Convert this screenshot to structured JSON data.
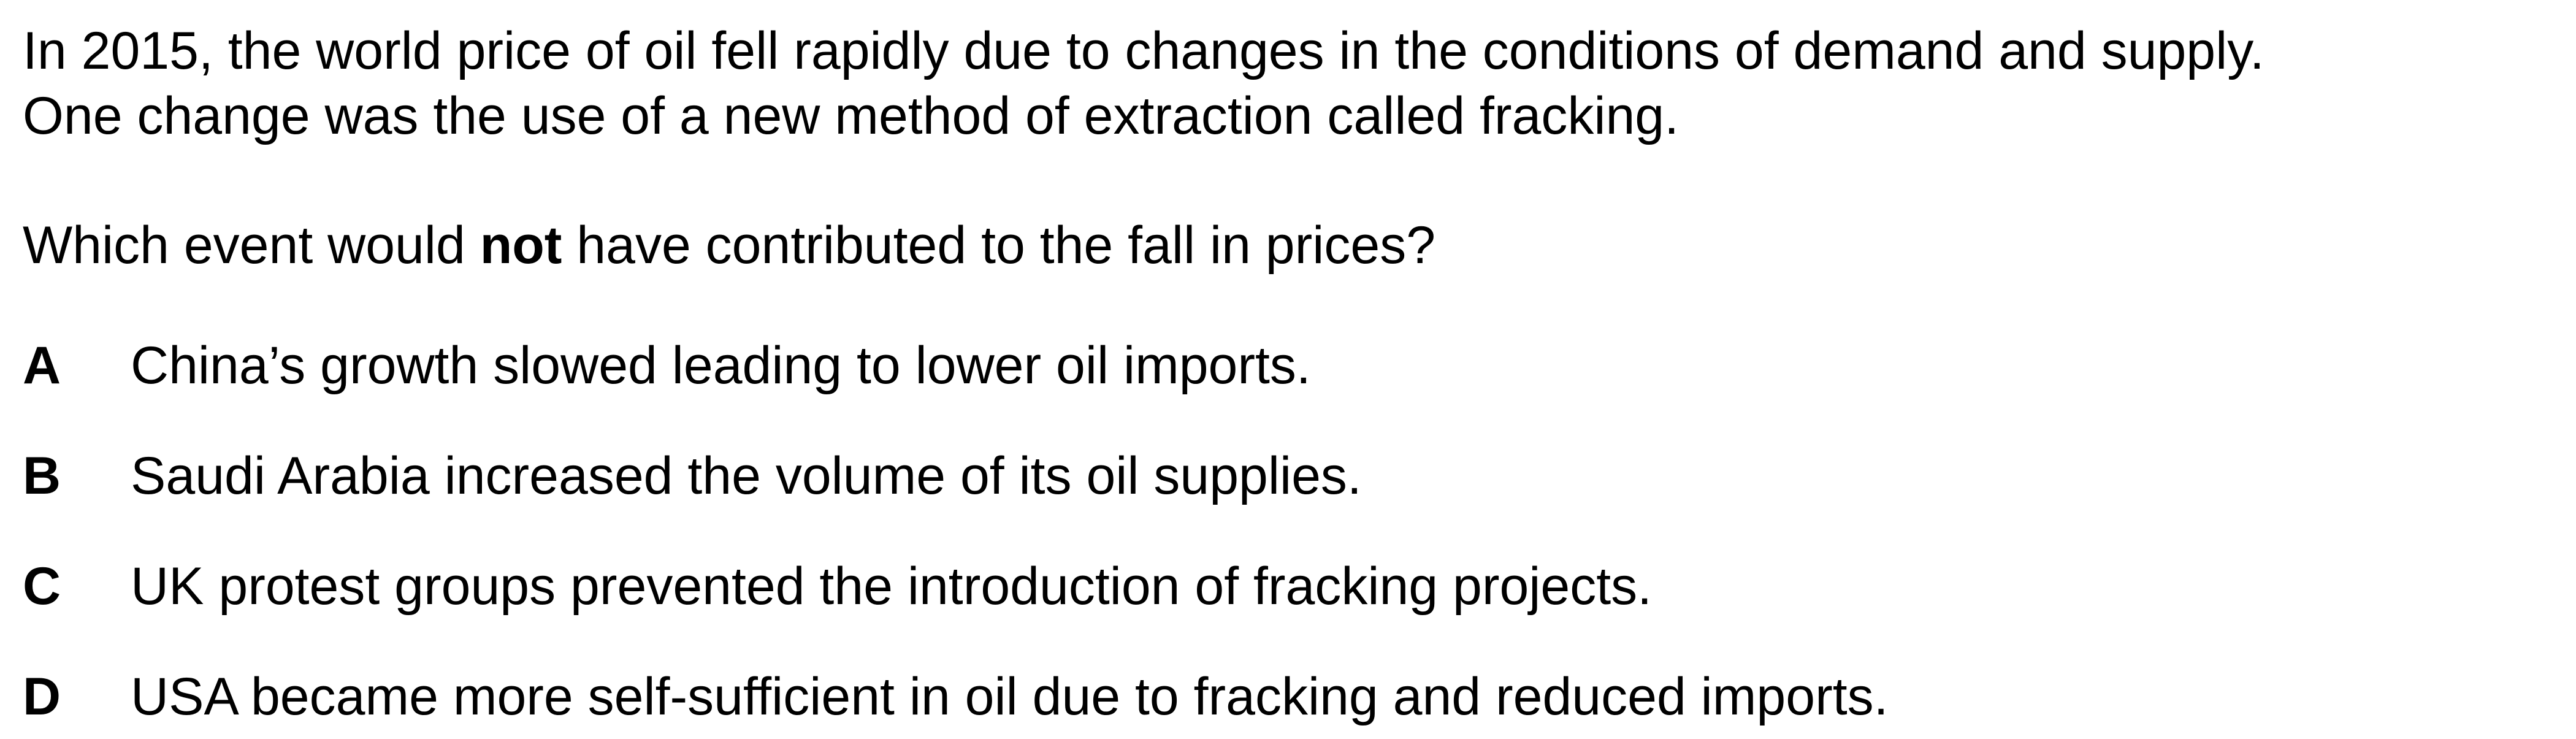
{
  "passage": {
    "line1": "In 2015, the world price of oil fell rapidly due to changes in the conditions of demand and supply.",
    "line2": "One change was the use of a new method of extraction called fracking."
  },
  "question": {
    "before": "Which event would ",
    "emphasis": "not",
    "after": " have contributed to the fall in prices?"
  },
  "options": [
    {
      "letter": "A",
      "text": "China’s growth slowed leading to lower oil imports."
    },
    {
      "letter": "B",
      "text": "Saudi Arabia increased the volume of its oil supplies."
    },
    {
      "letter": "C",
      "text": "UK protest groups prevented the introduction of fracking projects."
    },
    {
      "letter": "D",
      "text": "USA became more self-sufficient in oil due to fracking and reduced imports."
    }
  ]
}
